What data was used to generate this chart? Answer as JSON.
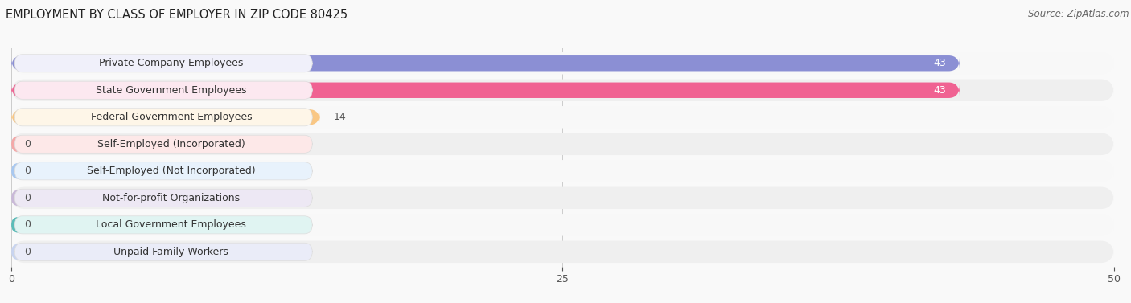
{
  "title": "EMPLOYMENT BY CLASS OF EMPLOYER IN ZIP CODE 80425",
  "source": "Source: ZipAtlas.com",
  "categories": [
    "Private Company Employees",
    "State Government Employees",
    "Federal Government Employees",
    "Self-Employed (Incorporated)",
    "Self-Employed (Not Incorporated)",
    "Not-for-profit Organizations",
    "Local Government Employees",
    "Unpaid Family Workers"
  ],
  "values": [
    43,
    43,
    14,
    0,
    0,
    0,
    0,
    0
  ],
  "bar_colors": [
    "#8b8fd4",
    "#f06292",
    "#f9c784",
    "#f4a8a8",
    "#a8c8f0",
    "#c9b8d8",
    "#5bbcb8",
    "#c8d4f0"
  ],
  "label_bg_colors": [
    "#f0f0fa",
    "#fce8f0",
    "#fef6e8",
    "#fde8e8",
    "#e8f2fc",
    "#ede8f4",
    "#e0f4f2",
    "#eaecf8"
  ],
  "row_bg_light": "#f8f8f8",
  "row_bg_dark": "#efefef",
  "xlim_max": 50,
  "xticks": [
    0,
    25,
    50
  ],
  "bg_color": "#f9f9f9",
  "title_fontsize": 10.5,
  "source_fontsize": 8.5,
  "label_fontsize": 9,
  "value_fontsize": 9
}
